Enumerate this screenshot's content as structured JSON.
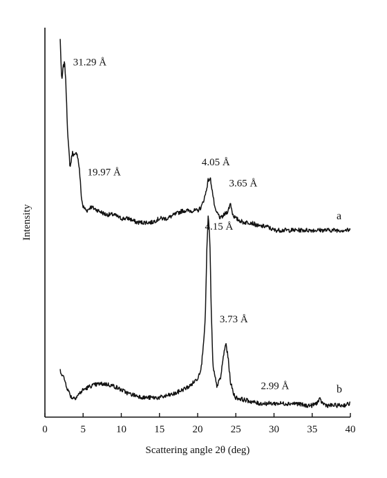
{
  "chart_data": {
    "type": "line",
    "xlabel": "Scattering angle 2θ (deg)",
    "ylabel": "Intensity",
    "xlim": [
      0,
      40
    ],
    "xticks": [
      0,
      5,
      10,
      15,
      20,
      25,
      30,
      35,
      40
    ],
    "y_tick_labels": "none",
    "ylim": [
      0,
      100
    ],
    "grid": false,
    "legend": "none",
    "series": [
      {
        "name": "a",
        "x": [
          2.0,
          2.2,
          2.4,
          2.6,
          2.8,
          3.0,
          3.3,
          3.6,
          3.9,
          4.2,
          4.5,
          4.8,
          5.0,
          5.5,
          6.0,
          7,
          8,
          9,
          10,
          11,
          12,
          13,
          14,
          15,
          16,
          17,
          18,
          19,
          20,
          20.5,
          21.0,
          21.4,
          21.7,
          22.0,
          22.3,
          22.7,
          23.0,
          23.5,
          24.0,
          24.3,
          24.6,
          25.0,
          26,
          27,
          28,
          29,
          30,
          31,
          32,
          33,
          34,
          35,
          36,
          37,
          38,
          39,
          40
        ],
        "y": [
          97,
          86,
          90,
          91,
          83,
          72,
          64,
          68,
          67,
          68,
          64,
          56,
          54,
          53,
          54,
          53,
          52,
          52,
          51,
          51,
          50,
          50,
          50,
          51,
          51,
          52,
          53,
          53,
          53,
          54,
          57,
          61,
          61,
          57,
          53,
          52,
          51,
          52,
          53,
          55,
          52,
          51,
          50,
          50,
          49,
          49,
          48,
          48,
          48,
          48,
          48,
          48,
          48,
          48,
          48,
          48,
          48
        ]
      },
      {
        "name": "b",
        "x": [
          2.0,
          2.5,
          3.0,
          3.5,
          4,
          5,
          6,
          7,
          8,
          9,
          10,
          11,
          12,
          13,
          14,
          15,
          16,
          17,
          18,
          19,
          20,
          20.5,
          21.0,
          21.2,
          21.4,
          21.6,
          21.8,
          22.0,
          22.5,
          23.0,
          23.4,
          23.7,
          24.0,
          24.3,
          24.7,
          25,
          26,
          27,
          28,
          29,
          30,
          31,
          32,
          33,
          34,
          35,
          35.5,
          36.0,
          36.4,
          37,
          38,
          39,
          40
        ],
        "y": [
          12,
          10,
          7,
          5,
          5,
          7,
          8,
          8.5,
          8.5,
          8,
          7,
          6,
          5.5,
          5,
          5,
          5,
          5.5,
          6,
          7,
          8,
          10,
          13,
          25,
          43,
          52,
          45,
          26,
          13,
          8,
          10,
          16,
          19,
          15,
          9,
          6,
          5,
          4.5,
          4,
          3.5,
          3.5,
          3.5,
          3.5,
          3.5,
          3.5,
          3,
          3,
          3.5,
          4.5,
          3.5,
          3,
          3,
          3,
          3.5
        ]
      }
    ],
    "annotations": [
      {
        "text": "31.29 Å",
        "series": "a",
        "x": 2.6
      },
      {
        "text": "19.97 Å",
        "series": "a",
        "x": 4.3
      },
      {
        "text": "4.05 Å",
        "series": "a",
        "x": 21.8
      },
      {
        "text": "3.65 Å",
        "series": "a",
        "x": 24.3
      },
      {
        "text": "4.15 Å",
        "series": "b",
        "x": 21.4
      },
      {
        "text": "3.73 Å",
        "series": "b",
        "x": 23.7
      },
      {
        "text": "2.99 Å",
        "series": "b",
        "x": 30.0
      }
    ]
  }
}
